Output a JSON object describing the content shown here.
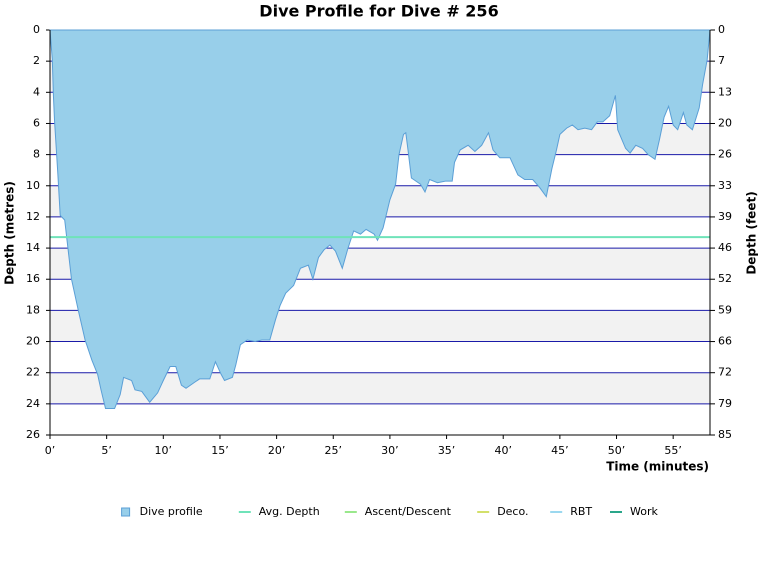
{
  "chart_data": {
    "type": "area",
    "title": "Dive Profile for Dive # 256",
    "x_label": "Time (minutes)",
    "y_label": "Depth (metres)",
    "y2_label": "Depth (feet)",
    "invert_y": true,
    "grid": true,
    "legend": "bottom",
    "xlim": [
      0,
      58.25
    ],
    "xticks": [
      {
        "value": 0,
        "label": "0’"
      },
      {
        "value": 5,
        "label": "5’"
      },
      {
        "value": 10,
        "label": "10’"
      },
      {
        "value": 15,
        "label": "15’"
      },
      {
        "value": 20,
        "label": "20’"
      },
      {
        "value": 25,
        "label": "25’"
      },
      {
        "value": 30,
        "label": "30’"
      },
      {
        "value": 35,
        "label": "35’"
      },
      {
        "value": 40,
        "label": "40’"
      },
      {
        "value": 45,
        "label": "45’"
      },
      {
        "value": 50,
        "label": "50’"
      },
      {
        "value": 55,
        "label": "55’"
      }
    ],
    "ylim": [
      0,
      26
    ],
    "yticks": [
      0,
      2,
      4,
      6,
      8,
      10,
      12,
      14,
      16,
      18,
      20,
      22,
      24,
      26
    ],
    "y2lim": [
      0,
      85.3
    ],
    "y2ticks": [
      0,
      {
        "value": 6.56,
        "label": "7"
      },
      {
        "value": 13.12,
        "label": "13"
      },
      {
        "value": 19.69,
        "label": "20"
      },
      {
        "value": 26.25,
        "label": "26"
      },
      {
        "value": 32.81,
        "label": "33"
      },
      {
        "value": 39.37,
        "label": "39"
      },
      {
        "value": 45.93,
        "label": "46"
      },
      {
        "value": 52.49,
        "label": "52"
      },
      {
        "value": 59.06,
        "label": "59"
      },
      {
        "value": 65.62,
        "label": "66"
      },
      {
        "value": 72.18,
        "label": "72"
      },
      {
        "value": 78.74,
        "label": "79"
      },
      {
        "value": 85.3,
        "label": "85"
      }
    ],
    "series": [
      {
        "name": "Dive profile",
        "color": "#98cfea",
        "x": [
          0,
          0.2,
          0.3,
          0.4,
          0.7,
          0.9,
          1.3,
          1.6,
          1.9,
          2.5,
          3.1,
          3.7,
          4.2,
          4.5,
          4.9,
          5.7,
          6.2,
          6.5,
          7.2,
          7.5,
          8.1,
          8.8,
          9.5,
          10,
          10.6,
          11.1,
          11.6,
          12,
          12.8,
          13.2,
          14.1,
          14.6,
          15.1,
          15.4,
          16.1,
          16.4,
          16.8,
          17.4,
          18.1,
          18.7,
          19.4,
          19.9,
          20.3,
          20.8,
          21.5,
          22.1,
          22.8,
          23.2,
          23.7,
          24.2,
          24.7,
          25.2,
          25.8,
          26.3,
          26.8,
          27.4,
          27.9,
          28.6,
          28.9,
          29.4,
          30,
          30.5,
          30.8,
          31.2,
          31.4,
          31.6,
          31.9,
          32.7,
          33.1,
          33.5,
          34.2,
          34.9,
          35.5,
          35.7,
          36.2,
          36.9,
          37.5,
          38.1,
          38.7,
          39.1,
          39.7,
          40.6,
          41.3,
          41.9,
          42.6,
          43.2,
          43.8,
          44.3,
          44.7,
          45,
          45.6,
          46.1,
          46.6,
          47.2,
          47.8,
          48.3,
          48.8,
          49.4,
          49.9,
          50.1,
          50.8,
          51.2,
          51.7,
          52.3,
          52.8,
          53.4,
          53.8,
          54.2,
          54.6,
          55,
          55.4,
          55.9,
          56.2,
          56.7,
          57.3,
          57.6,
          58,
          58.25
        ],
        "values": [
          0,
          1.9,
          4.2,
          5.8,
          9.3,
          11.9,
          12.2,
          14.1,
          16,
          18,
          19.9,
          21.2,
          22.1,
          23.1,
          24.3,
          24.3,
          23.4,
          22.3,
          22.5,
          23.1,
          23.2,
          23.9,
          23.3,
          22.5,
          21.6,
          21.6,
          22.8,
          23,
          22.6,
          22.4,
          22.4,
          21.3,
          22.1,
          22.5,
          22.3,
          21.5,
          20.2,
          19.9,
          20,
          19.9,
          19.9,
          18.6,
          17.7,
          16.9,
          16.4,
          15.3,
          15.1,
          16,
          14.6,
          14.1,
          13.8,
          14.2,
          15.3,
          14,
          12.9,
          13.1,
          12.8,
          13.1,
          13.5,
          12.7,
          10.9,
          9.9,
          8,
          6.7,
          6.6,
          7.7,
          9.5,
          9.9,
          10.4,
          9.6,
          9.8,
          9.7,
          9.7,
          8.5,
          7.7,
          7.4,
          7.8,
          7.4,
          6.6,
          7.7,
          8.2,
          8.2,
          9.3,
          9.6,
          9.6,
          10.1,
          10.7,
          8.9,
          7.7,
          6.7,
          6.3,
          6.1,
          6.4,
          6.3,
          6.4,
          5.9,
          5.9,
          5.5,
          4.2,
          6.4,
          7.6,
          7.9,
          7.4,
          7.6,
          8,
          8.3,
          7,
          5.6,
          4.9,
          6.1,
          6.4,
          5.3,
          6.1,
          6.4,
          5,
          3.5,
          1.9,
          0
        ]
      },
      {
        "name": "Avg. Depth",
        "color": "#6fe3b9",
        "value": 13.3
      },
      {
        "name": "Ascent/Descent",
        "color": "#9ae88c"
      },
      {
        "name": "Deco.",
        "color": "#d3e06a"
      },
      {
        "name": "RBT",
        "color": "#9bd8ef"
      },
      {
        "name": "Work",
        "color": "#2aa68a"
      }
    ]
  }
}
